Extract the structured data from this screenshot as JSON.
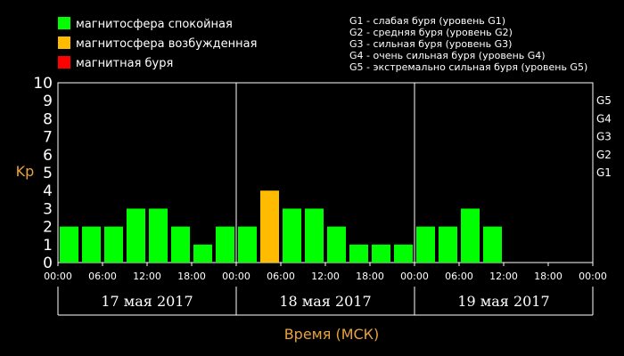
{
  "legend": [
    {
      "label": "магнитосфера спокойная",
      "color": "#00ff00"
    },
    {
      "label": "магнитосфера возбужденная",
      "color": "#ffbb00"
    },
    {
      "label": "магнитная буря",
      "color": "#ff0000"
    }
  ],
  "storm_legend": [
    "G1 - слабая буря (уровень G1)",
    "G2 - средняя буря (уровень G2)",
    "G3 - сильная буря (уровень G3)",
    "G4 - очень сильная буря (уровень G4)",
    "G5 - экстремально сильная буря (уровень G5)"
  ],
  "chart_data": {
    "type": "bar",
    "ylabel": "Kp",
    "xlabel": "Время (МСК)",
    "ylim": [
      0,
      10
    ],
    "yticks": [
      "0",
      "1",
      "2",
      "3",
      "4",
      "5",
      "6",
      "7",
      "8",
      "9",
      "10"
    ],
    "g_levels": [
      {
        "label": "G1",
        "kp": 5
      },
      {
        "label": "G2",
        "kp": 6
      },
      {
        "label": "G3",
        "kp": 7
      },
      {
        "label": "G4",
        "kp": 8
      },
      {
        "label": "G5",
        "kp": 9
      }
    ],
    "xtick_labels": [
      "00:00",
      "06:00",
      "12:00",
      "18:00",
      "00:00",
      "06:00",
      "12:00",
      "18:00",
      "00:00",
      "06:00",
      "12:00",
      "18:00",
      "00:00"
    ],
    "days": [
      "17 мая 2017",
      "18 мая 2017",
      "19 мая 2017"
    ],
    "series": [
      {
        "values": [
          2,
          2,
          2,
          3,
          3,
          2,
          1,
          2,
          2,
          4,
          3,
          3,
          2,
          1,
          1,
          1,
          2,
          2,
          3,
          2
        ]
      }
    ],
    "colors": {
      "quiet": "#00ff00",
      "active": "#ffbb00",
      "storm": "#ff0000",
      "axis_title": "#e8a23a"
    }
  }
}
